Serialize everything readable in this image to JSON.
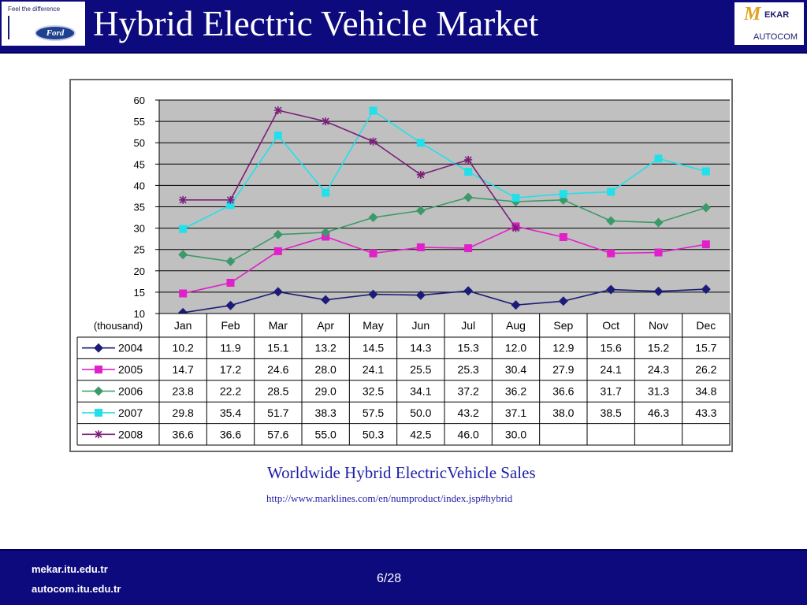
{
  "slide": {
    "title": "Hybrid Electric Vehicle Market",
    "caption": "Worldwide Hybrid ElectricVehicle Sales",
    "source": "http://www.marklines.com/en/numproduct/index.jsp#hybrid",
    "page": "6/28"
  },
  "logos": {
    "ford_tagline": "Feel the difference",
    "ford_name": "Ford",
    "mekar_letter": "M",
    "mekar_word": "EKAR",
    "autocom_word": "AUTOCOM"
  },
  "footer": {
    "link1": "mekar.itu.edu.tr",
    "link2": "autocom.itu.edu.tr"
  },
  "chart_data": {
    "type": "line",
    "title": "",
    "xlabel": "",
    "ylabel": "(thousand)",
    "ylim": [
      10,
      60
    ],
    "yticks": [
      10,
      15,
      20,
      25,
      30,
      35,
      40,
      45,
      50,
      55,
      60
    ],
    "grid": true,
    "categories": [
      "Jan",
      "Feb",
      "Mar",
      "Apr",
      "May",
      "Jun",
      "Jul",
      "Aug",
      "Sep",
      "Oct",
      "Nov",
      "Dec"
    ],
    "series": [
      {
        "name": "2004",
        "color": "#1c1c78",
        "marker": "diamond",
        "values": [
          "10.2",
          "11.9",
          "15.1",
          "13.2",
          "14.5",
          "14.3",
          "15.3",
          "12.0",
          "12.9",
          "15.6",
          "15.2",
          "15.7"
        ]
      },
      {
        "name": "2005",
        "color": "#e020c8",
        "marker": "square",
        "values": [
          "14.7",
          "17.2",
          "24.6",
          "28.0",
          "24.1",
          "25.5",
          "25.3",
          "30.4",
          "27.9",
          "24.1",
          "24.3",
          "26.2"
        ]
      },
      {
        "name": "2006",
        "color": "#3c9a6a",
        "marker": "diamond",
        "values": [
          "23.8",
          "22.2",
          "28.5",
          "29.0",
          "32.5",
          "34.1",
          "37.2",
          "36.2",
          "36.6",
          "31.7",
          "31.3",
          "34.8"
        ]
      },
      {
        "name": "2007",
        "color": "#22e0ea",
        "marker": "square",
        "values": [
          "29.8",
          "35.4",
          "51.7",
          "38.3",
          "57.5",
          "50.0",
          "43.2",
          "37.1",
          "38.0",
          "38.5",
          "46.3",
          "43.3"
        ]
      },
      {
        "name": "2008",
        "color": "#7a1f7a",
        "marker": "star",
        "values": [
          "36.6",
          "36.6",
          "57.6",
          "55.0",
          "50.3",
          "42.5",
          "46.0",
          "30.0",
          "",
          "",
          "",
          ""
        ]
      }
    ]
  }
}
